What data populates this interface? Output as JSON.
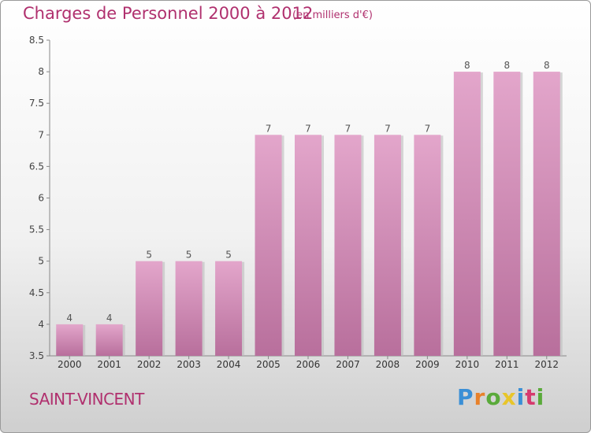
{
  "title": "Charges de Personnel 2000 à 2012",
  "subtitle": "(en milliers d'€)",
  "place": "SAINT-VINCENT",
  "logo": {
    "letters": [
      "P",
      "r",
      "o",
      "x",
      "i",
      "t",
      "i"
    ],
    "colors": [
      "#3a8fd6",
      "#e8812a",
      "#5aaa3a",
      "#e8c52a",
      "#3a8fd6",
      "#d63a6e",
      "#5aaa3a"
    ]
  },
  "chart_data": {
    "type": "bar",
    "categories": [
      "2000",
      "2001",
      "2002",
      "2003",
      "2004",
      "2005",
      "2006",
      "2007",
      "2008",
      "2009",
      "2010",
      "2011",
      "2012"
    ],
    "values": [
      4,
      4,
      5,
      5,
      5,
      7,
      7,
      7,
      7,
      7,
      8,
      8,
      8
    ],
    "value_labels": [
      "4",
      "4",
      "5",
      "5",
      "5",
      "7",
      "7",
      "7",
      "7",
      "7",
      "8",
      "8",
      "8"
    ],
    "ylim": [
      3.5,
      8.5
    ],
    "yticks": [
      3.5,
      4,
      4.5,
      5,
      5.5,
      6,
      6.5,
      7,
      7.5,
      8,
      8.5
    ],
    "ytick_labels": [
      "3.5",
      "4",
      "4.5",
      "5",
      "5.5",
      "6",
      "6.5",
      "7",
      "7.5",
      "8",
      "8.5"
    ],
    "grid": false,
    "bar_color": "#d88fb8"
  }
}
